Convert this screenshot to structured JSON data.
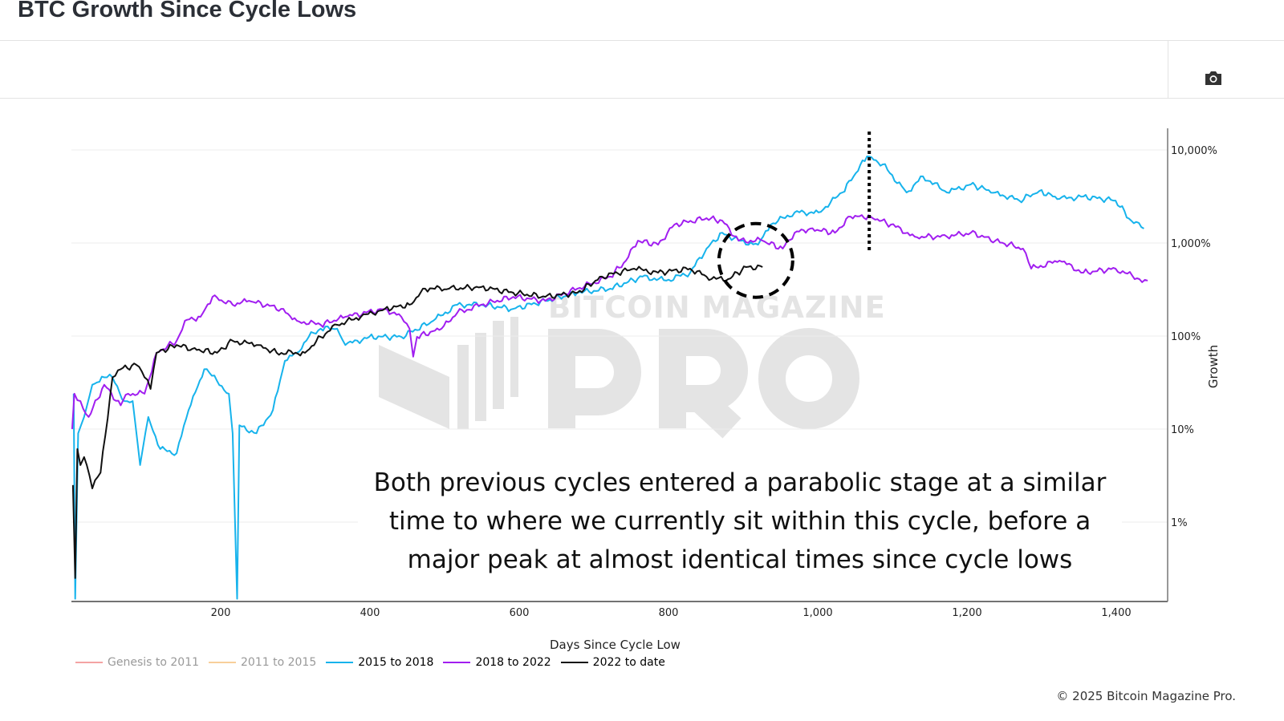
{
  "header": {
    "title": "BTC Growth Since Cycle Lows",
    "camera_icon": "camera-icon"
  },
  "footer": {
    "copyright": "© 2025 Bitcoin Magazine Pro."
  },
  "watermark": {
    "line1": "BITCOIN MAGAZINE",
    "line2": "PRO"
  },
  "chart_data": {
    "type": "line",
    "title": "BTC Growth Since Cycle Lows",
    "xlabel": "Days Since Cycle Low",
    "ylabel": "Growth",
    "x_ticks": [
      {
        "v": 200,
        "label": "200"
      },
      {
        "v": 400,
        "label": "400"
      },
      {
        "v": 600,
        "label": "600"
      },
      {
        "v": 800,
        "label": "800"
      },
      {
        "v": 1000,
        "label": "1,000"
      },
      {
        "v": 1200,
        "label": "1,200"
      },
      {
        "v": 1400,
        "label": "1,400"
      }
    ],
    "y_ticks": [
      {
        "v": 1,
        "label": "1%"
      },
      {
        "v": 10,
        "label": "10%"
      },
      {
        "v": 100,
        "label": "100%"
      },
      {
        "v": 1000,
        "label": "1,000%"
      },
      {
        "v": 10000,
        "label": "10,000%"
      }
    ],
    "y_scale": "log",
    "y_axis_side": "right",
    "xlim": [
      0,
      1468
    ],
    "ylim": [
      0.14,
      30000
    ],
    "grid": true,
    "legend_placement": "bottom-left",
    "series": [
      {
        "name": "Genesis to 2011",
        "color": "#f4a3a3",
        "hidden": true,
        "points": []
      },
      {
        "name": "2011 to 2015",
        "color": "#f8cf9a",
        "hidden": true,
        "points": []
      },
      {
        "name": "2015 to 2018",
        "color": "#17b3ec",
        "hidden": false,
        "points": [
          [
            3,
            24
          ],
          [
            5,
            0.15
          ],
          [
            9,
            9
          ],
          [
            17,
            13.5
          ],
          [
            28,
            30
          ],
          [
            44,
            36
          ],
          [
            55,
            36
          ],
          [
            71,
            20
          ],
          [
            82,
            20
          ],
          [
            92,
            4.1
          ],
          [
            103,
            13.5
          ],
          [
            119,
            6.1
          ],
          [
            141,
            5.5
          ],
          [
            157,
            16
          ],
          [
            178,
            44
          ],
          [
            195,
            33
          ],
          [
            211,
            24
          ],
          [
            216,
            9
          ],
          [
            222,
            0.15
          ],
          [
            225,
            11
          ],
          [
            248,
            9
          ],
          [
            270,
            16
          ],
          [
            286,
            54
          ],
          [
            302,
            66
          ],
          [
            318,
            98
          ],
          [
            334,
            120
          ],
          [
            356,
            120
          ],
          [
            367,
            80
          ],
          [
            399,
            98
          ],
          [
            442,
            98
          ],
          [
            485,
            146
          ],
          [
            517,
            217
          ],
          [
            549,
            217
          ],
          [
            592,
            196
          ],
          [
            635,
            239
          ],
          [
            678,
            292
          ],
          [
            722,
            323
          ],
          [
            765,
            435
          ],
          [
            797,
            394
          ],
          [
            829,
            480
          ],
          [
            851,
            870
          ],
          [
            872,
            1290
          ],
          [
            894,
            1060
          ],
          [
            920,
            960
          ],
          [
            937,
            1580
          ],
          [
            969,
            2130
          ],
          [
            1001,
            2130
          ],
          [
            1033,
            3490
          ],
          [
            1066,
            8530
          ],
          [
            1087,
            7000
          ],
          [
            1119,
            3490
          ],
          [
            1141,
            5200
          ],
          [
            1173,
            3490
          ],
          [
            1205,
            4260
          ],
          [
            1238,
            3490
          ],
          [
            1270,
            2860
          ],
          [
            1297,
            3630
          ],
          [
            1324,
            2980
          ],
          [
            1356,
            3160
          ],
          [
            1399,
            2860
          ],
          [
            1420,
            1740
          ],
          [
            1437,
            1430
          ]
        ]
      },
      {
        "name": "2018 to 2022",
        "color": "#a11ef0",
        "hidden": false,
        "points": [
          [
            1,
            10
          ],
          [
            4,
            24
          ],
          [
            12,
            20
          ],
          [
            23,
            13.5
          ],
          [
            44,
            30
          ],
          [
            66,
            18
          ],
          [
            76,
            24
          ],
          [
            98,
            24
          ],
          [
            114,
            66
          ],
          [
            141,
            89
          ],
          [
            152,
            146
          ],
          [
            173,
            161
          ],
          [
            189,
            264
          ],
          [
            216,
            217
          ],
          [
            238,
            239
          ],
          [
            281,
            196
          ],
          [
            302,
            146
          ],
          [
            334,
            132
          ],
          [
            367,
            161
          ],
          [
            420,
            196
          ],
          [
            442,
            161
          ],
          [
            453,
            120
          ],
          [
            458,
            60
          ],
          [
            463,
            98
          ],
          [
            496,
            120
          ],
          [
            517,
            178
          ],
          [
            549,
            217
          ],
          [
            592,
            264
          ],
          [
            635,
            239
          ],
          [
            678,
            323
          ],
          [
            722,
            435
          ],
          [
            743,
            646
          ],
          [
            759,
            1060
          ],
          [
            786,
            960
          ],
          [
            808,
            1580
          ],
          [
            851,
            1850
          ],
          [
            872,
            1740
          ],
          [
            894,
            1060
          ],
          [
            926,
            1060
          ],
          [
            953,
            870
          ],
          [
            969,
            1290
          ],
          [
            990,
            1430
          ],
          [
            1023,
            1290
          ],
          [
            1044,
            1920
          ],
          [
            1071,
            1920
          ],
          [
            1098,
            1580
          ],
          [
            1130,
            1170
          ],
          [
            1173,
            1170
          ],
          [
            1205,
            1290
          ],
          [
            1238,
            1060
          ],
          [
            1275,
            870
          ],
          [
            1286,
            530
          ],
          [
            1324,
            646
          ],
          [
            1356,
            480
          ],
          [
            1399,
            530
          ],
          [
            1431,
            409
          ],
          [
            1442,
            394
          ]
        ]
      },
      {
        "name": "2022 to date",
        "color": "#111111",
        "hidden": false,
        "points": [
          [
            2,
            2.5
          ],
          [
            5,
            0.25
          ],
          [
            8,
            6.1
          ],
          [
            12,
            4.1
          ],
          [
            17,
            5
          ],
          [
            28,
            2.3
          ],
          [
            39,
            3.4
          ],
          [
            55,
            36
          ],
          [
            66,
            44
          ],
          [
            87,
            49
          ],
          [
            98,
            36
          ],
          [
            106,
            27
          ],
          [
            114,
            66
          ],
          [
            141,
            80
          ],
          [
            162,
            73
          ],
          [
            195,
            66
          ],
          [
            216,
            89
          ],
          [
            248,
            80
          ],
          [
            275,
            66
          ],
          [
            313,
            66
          ],
          [
            334,
            98
          ],
          [
            356,
            132
          ],
          [
            388,
            161
          ],
          [
            420,
            196
          ],
          [
            453,
            217
          ],
          [
            474,
            323
          ],
          [
            506,
            323
          ],
          [
            549,
            336
          ],
          [
            592,
            292
          ],
          [
            635,
            264
          ],
          [
            678,
            292
          ],
          [
            711,
            435
          ],
          [
            754,
            530
          ],
          [
            786,
            480
          ],
          [
            829,
            530
          ],
          [
            851,
            435
          ],
          [
            877,
            394
          ],
          [
            904,
            551
          ],
          [
            926,
            551
          ]
        ]
      }
    ],
    "annotations": {
      "text": "Both previous cycles entered a parabolic stage at a similar time to where we currently sit within this cycle, before a major peak at almost identical times since cycle lows",
      "peak_marker_day": 1069,
      "circle_center_day": 917,
      "circle_center_growth": 650
    }
  }
}
